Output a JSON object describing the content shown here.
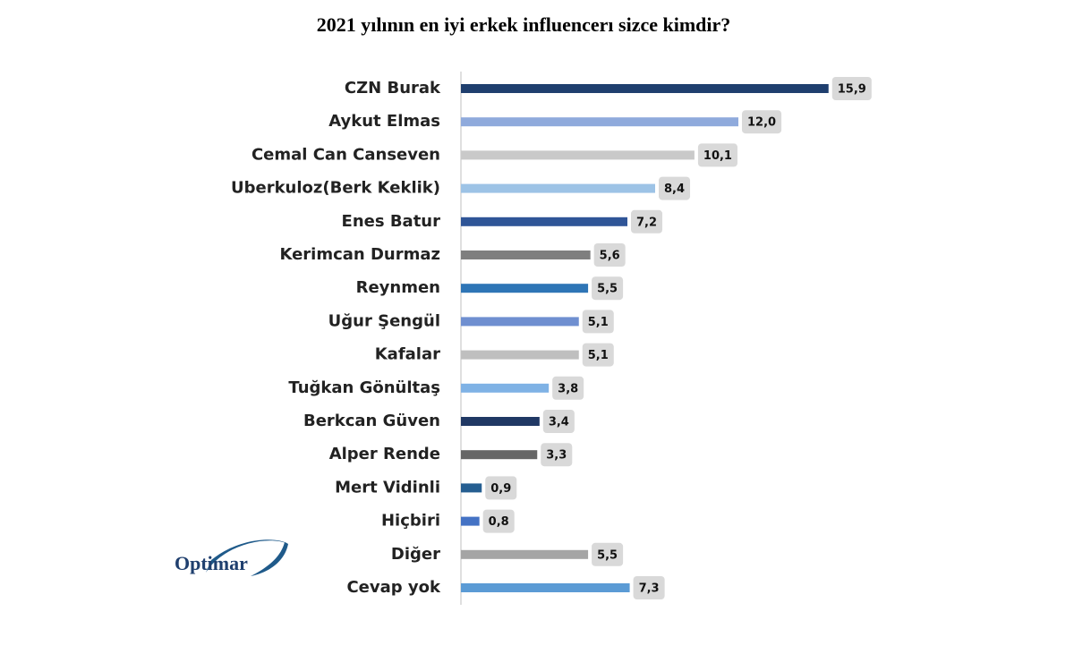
{
  "chart_data": {
    "type": "bar",
    "orientation": "horizontal",
    "title": "2021 yılının en iyi erkek influencerı sizce kimdir?",
    "logo": "Optimar",
    "categories": [
      "CZN Burak",
      "Aykut Elmas",
      "Cemal Can Canseven",
      "Uberkuloz(Berk Keklik)",
      "Enes Batur",
      "Kerimcan Durmaz",
      "Reynmen",
      "Uğur Şengül",
      "Kafalar",
      "Tuğkan Gönültaş",
      "Berkcan Güven",
      "Alper Rende",
      "Mert Vidinli",
      "Hiçbiri",
      "Diğer",
      "Cevap yok"
    ],
    "values": [
      15.9,
      12.0,
      10.1,
      8.4,
      7.2,
      5.6,
      5.5,
      5.1,
      5.1,
      3.8,
      3.4,
      3.3,
      0.9,
      0.8,
      5.5,
      7.3
    ],
    "value_labels": [
      "15,9",
      "12,0",
      "10,1",
      "8,4",
      "7,2",
      "5,6",
      "5,5",
      "5,1",
      "5,1",
      "3,8",
      "3,4",
      "3,3",
      "0,9",
      "0,8",
      "5,5",
      "7,3"
    ],
    "colors": [
      "#1f3f6e",
      "#8faadc",
      "#c9c9c9",
      "#9dc3e6",
      "#2f5597",
      "#7f7f7f",
      "#2e75b6",
      "#6f8fd0",
      "#bfbfbf",
      "#7fb2e5",
      "#203864",
      "#666666",
      "#255e91",
      "#4472c4",
      "#a5a5a5",
      "#5b9bd5"
    ],
    "xlim": [
      0,
      18
    ]
  }
}
